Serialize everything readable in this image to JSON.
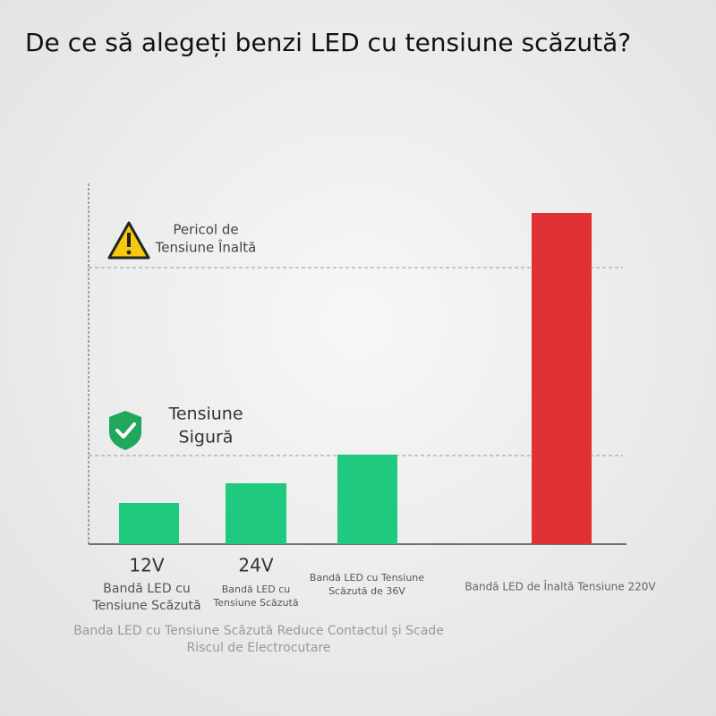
{
  "title": "De ce să alegeți benzi LED cu tensiune scăzută?",
  "zones": {
    "danger": [
      "Pericol de",
      "Tensiune Înaltă"
    ],
    "safe": [
      "Tensiune",
      "Sigură"
    ]
  },
  "bars": [
    {
      "voltage": "12V",
      "label": [
        "Bandă LED cu",
        "Tensiune Scăzută"
      ]
    },
    {
      "voltage": "24V",
      "label": [
        "Bandă LED cu",
        "Tensiune Scăzută"
      ]
    },
    {
      "label": [
        "Bandă LED cu Tensiune",
        "Scăzută de 36V"
      ]
    },
    {
      "label": [
        "Bandă LED de Înaltă Tensiune 220V"
      ]
    }
  ],
  "caption": [
    "Banda LED cu Tensiune Scăzută Reduce Contactul și Scade",
    "Riscul de Electrocutare"
  ]
}
